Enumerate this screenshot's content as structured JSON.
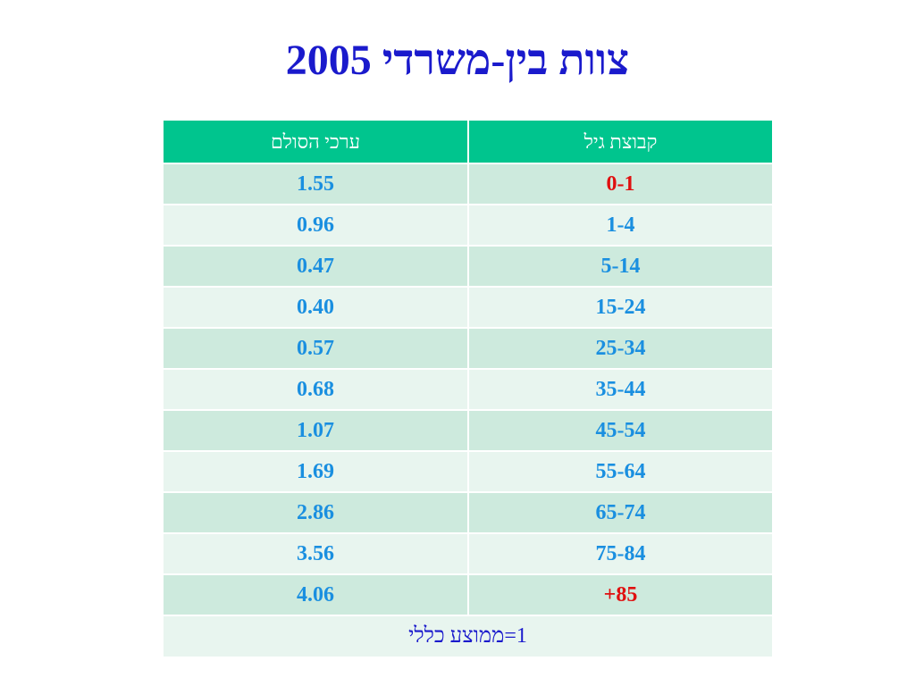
{
  "title": "צוות בין-משרדי 2005",
  "table": {
    "headers": {
      "age_group": "קבוצת גיל",
      "scale_values": "ערכי הסולם"
    },
    "rows": [
      {
        "age": "0-1",
        "value": "1.55"
      },
      {
        "age": "1-4",
        "value": "0.96"
      },
      {
        "age": "5-14",
        "value": "0.47"
      },
      {
        "age": "15-24",
        "value": "0.40"
      },
      {
        "age": "25-34",
        "value": "0.57"
      },
      {
        "age": "35-44",
        "value": "0.68"
      },
      {
        "age": "45-54",
        "value": "1.07"
      },
      {
        "age": "55-64",
        "value": "1.69"
      },
      {
        "age": "65-74",
        "value": "2.86"
      },
      {
        "age": "75-84",
        "value": "3.56"
      },
      {
        "age": "85+",
        "value": "4.06"
      }
    ],
    "footer": "1=ממוצע כללי"
  },
  "colors": {
    "title": "#1a1acc",
    "header_bg": "#00c58e",
    "row_dark": "#cdeadd",
    "row_light": "#e8f5ef",
    "value_text": "#1a8fe0",
    "highlight_text": "#e01010"
  }
}
